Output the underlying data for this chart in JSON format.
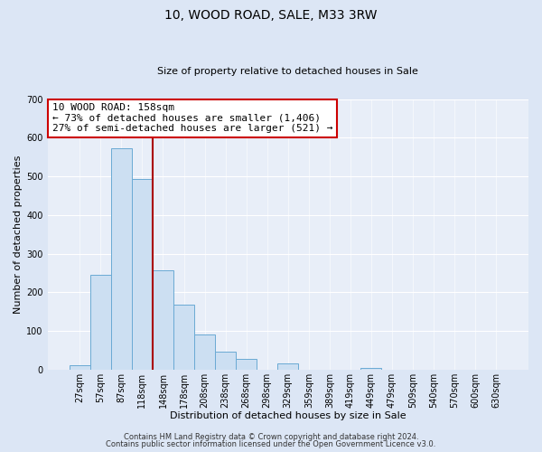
{
  "title": "10, WOOD ROAD, SALE, M33 3RW",
  "subtitle": "Size of property relative to detached houses in Sale",
  "xlabel": "Distribution of detached houses by size in Sale",
  "ylabel": "Number of detached properties",
  "bin_labels": [
    "27sqm",
    "57sqm",
    "87sqm",
    "118sqm",
    "148sqm",
    "178sqm",
    "208sqm",
    "238sqm",
    "268sqm",
    "298sqm",
    "329sqm",
    "359sqm",
    "389sqm",
    "419sqm",
    "449sqm",
    "479sqm",
    "509sqm",
    "540sqm",
    "570sqm",
    "600sqm",
    "630sqm"
  ],
  "bar_heights": [
    12,
    245,
    573,
    493,
    258,
    168,
    90,
    47,
    27,
    0,
    15,
    0,
    0,
    0,
    5,
    0,
    0,
    0,
    0,
    0,
    0
  ],
  "bar_color": "#ccdff2",
  "bar_edge_color": "#6aaad4",
  "reference_line_color": "#aa0000",
  "annotation_line1": "10 WOOD ROAD: 158sqm",
  "annotation_line2": "← 73% of detached houses are smaller (1,406)",
  "annotation_line3": "27% of semi-detached houses are larger (521) →",
  "annotation_box_color": "#ffffff",
  "annotation_box_edge_color": "#cc0000",
  "ylim": [
    0,
    700
  ],
  "yticks": [
    0,
    100,
    200,
    300,
    400,
    500,
    600,
    700
  ],
  "footer_line1": "Contains HM Land Registry data © Crown copyright and database right 2024.",
  "footer_line2": "Contains public sector information licensed under the Open Government Licence v3.0.",
  "fig_background_color": "#dce6f5",
  "plot_background_color": "#e8eef8",
  "grid_color": "#ffffff",
  "title_fontsize": 10,
  "subtitle_fontsize": 8,
  "annotation_fontsize": 8,
  "axis_label_fontsize": 8,
  "tick_fontsize": 7,
  "footer_fontsize": 6
}
